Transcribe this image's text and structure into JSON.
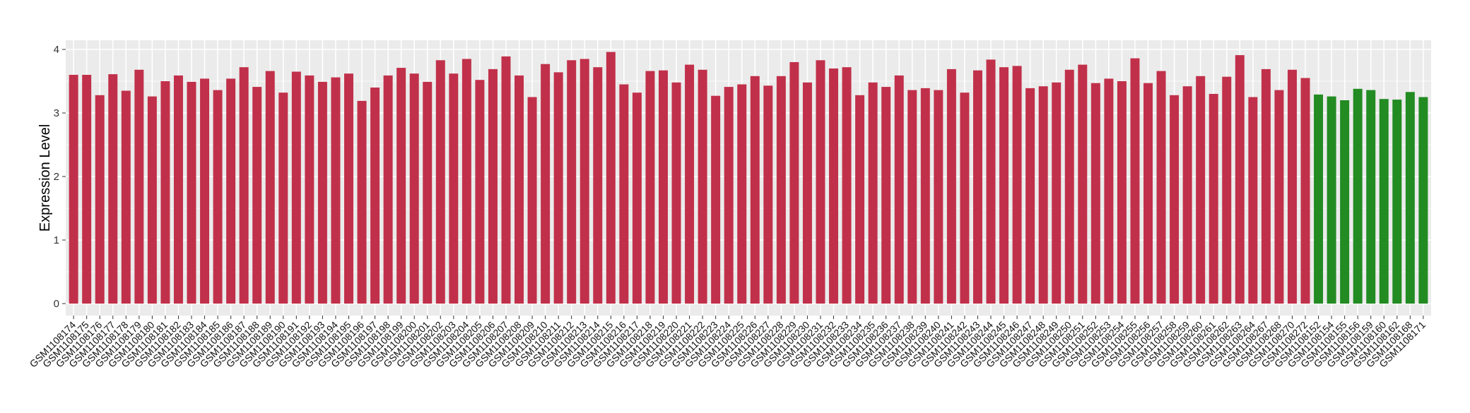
{
  "chart_data": {
    "type": "bar",
    "title": "",
    "xlabel": "",
    "ylabel": "Expression Level",
    "ylim": [
      0,
      4
    ],
    "yticks": [
      0,
      1,
      2,
      3,
      4
    ],
    "grid": true,
    "colors": {
      "group_1": "#C1304A",
      "group_2": "#228B22",
      "panel": "#EBEBEB",
      "grid": "#FFFFFF"
    },
    "categories": [
      "GSM1108174",
      "GSM1108175",
      "GSM1108176",
      "GSM1108177",
      "GSM1108178",
      "GSM1108179",
      "GSM1108180",
      "GSM1108181",
      "GSM1108182",
      "GSM1108183",
      "GSM1108184",
      "GSM1108185",
      "GSM1108186",
      "GSM1108187",
      "GSM1108188",
      "GSM1108189",
      "GSM1108190",
      "GSM1108191",
      "GSM1108192",
      "GSM1108193",
      "GSM1108194",
      "GSM1108195",
      "GSM1108196",
      "GSM1108197",
      "GSM1108198",
      "GSM1108199",
      "GSM1108200",
      "GSM1108201",
      "GSM1108202",
      "GSM1108203",
      "GSM1108204",
      "GSM1108205",
      "GSM1108206",
      "GSM1108207",
      "GSM1108208",
      "GSM1108209",
      "GSM1108210",
      "GSM1108211",
      "GSM1108212",
      "GSM1108213",
      "GSM1108214",
      "GSM1108215",
      "GSM1108216",
      "GSM1108217",
      "GSM1108218",
      "GSM1108219",
      "GSM1108220",
      "GSM1108221",
      "GSM1108222",
      "GSM1108223",
      "GSM1108224",
      "GSM1108225",
      "GSM1108226",
      "GSM1108227",
      "GSM1108228",
      "GSM1108229",
      "GSM1108230",
      "GSM1108231",
      "GSM1108232",
      "GSM1108233",
      "GSM1108234",
      "GSM1108235",
      "GSM1108236",
      "GSM1108237",
      "GSM1108238",
      "GSM1108239",
      "GSM1108240",
      "GSM1108241",
      "GSM1108242",
      "GSM1108243",
      "GSM1108244",
      "GSM1108245",
      "GSM1108246",
      "GSM1108247",
      "GSM1108248",
      "GSM1108249",
      "GSM1108250",
      "GSM1108251",
      "GSM1108252",
      "GSM1108253",
      "GSM1108254",
      "GSM1108255",
      "GSM1108256",
      "GSM1108257",
      "GSM1108258",
      "GSM1108259",
      "GSM1108260",
      "GSM1108261",
      "GSM1108262",
      "GSM1108263",
      "GSM1108264",
      "GSM1108267",
      "GSM1108268",
      "GSM1108270",
      "GSM1108272",
      "GSM1108152",
      "GSM1108154",
      "GSM1108155",
      "GSM1108156",
      "GSM1108159",
      "GSM1108160",
      "GSM1108162",
      "GSM1108168",
      "GSM1108171"
    ],
    "values": [
      3.6,
      3.6,
      3.28,
      3.61,
      3.35,
      3.68,
      3.26,
      3.5,
      3.59,
      3.49,
      3.54,
      3.36,
      3.54,
      3.72,
      3.41,
      3.66,
      3.32,
      3.65,
      3.59,
      3.49,
      3.56,
      3.62,
      3.19,
      3.4,
      3.59,
      3.71,
      3.62,
      3.49,
      3.83,
      3.62,
      3.85,
      3.52,
      3.69,
      3.89,
      3.59,
      3.25,
      3.77,
      3.64,
      3.83,
      3.85,
      3.72,
      3.96,
      3.45,
      3.32,
      3.66,
      3.67,
      3.48,
      3.76,
      3.68,
      3.27,
      3.41,
      3.45,
      3.58,
      3.43,
      3.58,
      3.8,
      3.48,
      3.83,
      3.7,
      3.72,
      3.28,
      3.48,
      3.41,
      3.59,
      3.36,
      3.39,
      3.36,
      3.69,
      3.32,
      3.67,
      3.84,
      3.72,
      3.74,
      3.39,
      3.42,
      3.48,
      3.68,
      3.76,
      3.47,
      3.54,
      3.5,
      3.86,
      3.47,
      3.66,
      3.28,
      3.42,
      3.58,
      3.3,
      3.57,
      3.91,
      3.25,
      3.69,
      3.36,
      3.68,
      3.55,
      3.29,
      3.26,
      3.2,
      3.38,
      3.36,
      3.22,
      3.21,
      3.33,
      3.25
    ],
    "groups": [
      "group_1",
      "group_1",
      "group_1",
      "group_1",
      "group_1",
      "group_1",
      "group_1",
      "group_1",
      "group_1",
      "group_1",
      "group_1",
      "group_1",
      "group_1",
      "group_1",
      "group_1",
      "group_1",
      "group_1",
      "group_1",
      "group_1",
      "group_1",
      "group_1",
      "group_1",
      "group_1",
      "group_1",
      "group_1",
      "group_1",
      "group_1",
      "group_1",
      "group_1",
      "group_1",
      "group_1",
      "group_1",
      "group_1",
      "group_1",
      "group_1",
      "group_1",
      "group_1",
      "group_1",
      "group_1",
      "group_1",
      "group_1",
      "group_1",
      "group_1",
      "group_1",
      "group_1",
      "group_1",
      "group_1",
      "group_1",
      "group_1",
      "group_1",
      "group_1",
      "group_1",
      "group_1",
      "group_1",
      "group_1",
      "group_1",
      "group_1",
      "group_1",
      "group_1",
      "group_1",
      "group_1",
      "group_1",
      "group_1",
      "group_1",
      "group_1",
      "group_1",
      "group_1",
      "group_1",
      "group_1",
      "group_1",
      "group_1",
      "group_1",
      "group_1",
      "group_1",
      "group_1",
      "group_1",
      "group_1",
      "group_1",
      "group_1",
      "group_1",
      "group_1",
      "group_1",
      "group_1",
      "group_1",
      "group_1",
      "group_1",
      "group_1",
      "group_1",
      "group_1",
      "group_1",
      "group_1",
      "group_1",
      "group_1",
      "group_1",
      "group_1",
      "group_2",
      "group_2",
      "group_2",
      "group_2",
      "group_2",
      "group_2",
      "group_2",
      "group_2",
      "group_2"
    ]
  }
}
